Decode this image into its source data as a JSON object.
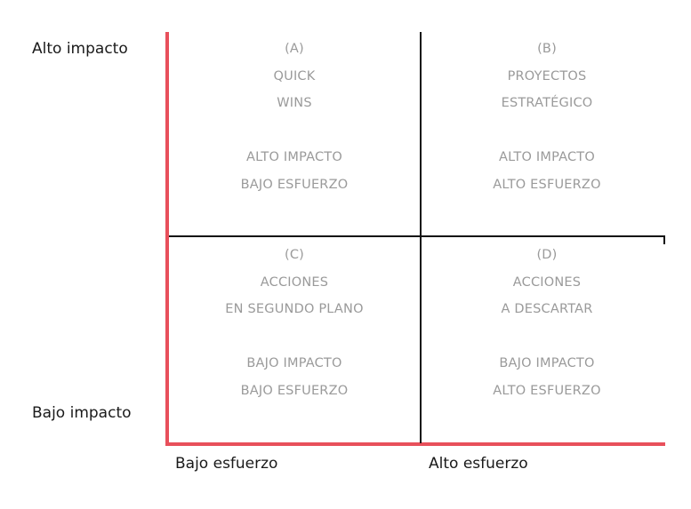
{
  "axes": {
    "y_high": "Alto impacto",
    "y_low": "Bajo impacto",
    "x_low": "Bajo esfuerzo",
    "x_high": "Alto esfuerzo"
  },
  "colors": {
    "axis": "#e8505b",
    "divider": "#111111",
    "quadrant_text": "#9a9a9a",
    "axis_text": "#1a1a1a"
  },
  "quadrants": {
    "a": {
      "letter": "(A)",
      "name_1": "QUICK",
      "name_2": "WINS",
      "desc_1": "ALTO IMPACTO",
      "desc_2": "BAJO ESFUERZO"
    },
    "b": {
      "letter": "(B)",
      "name_1": "PROYECTOS",
      "name_2": "ESTRATÉGICO",
      "desc_1": "ALTO IMPACTO",
      "desc_2": "ALTO ESFUERZO"
    },
    "c": {
      "letter": "(C)",
      "name_1": "ACCIONES",
      "name_2": "EN SEGUNDO PLANO",
      "desc_1": "BAJO IMPACTO",
      "desc_2": "BAJO ESFUERZO"
    },
    "d": {
      "letter": "(D)",
      "name_1": "ACCIONES",
      "name_2": "A DESCARTAR",
      "desc_1": "BAJO IMPACTO",
      "desc_2": "ALTO ESFUERZO"
    }
  }
}
